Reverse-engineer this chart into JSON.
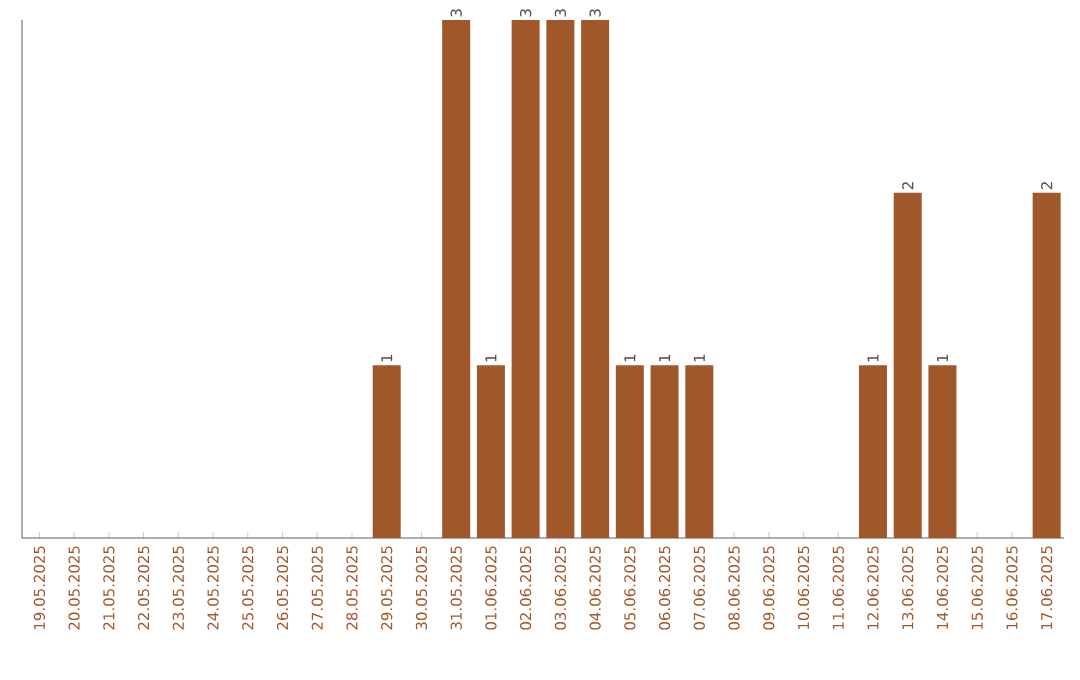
{
  "chart_data": {
    "type": "bar",
    "categories": [
      "19.05.2025",
      "20.05.2025",
      "21.05.2025",
      "22.05.2025",
      "23.05.2025",
      "24.05.2025",
      "25.05.2025",
      "26.05.2025",
      "27.05.2025",
      "28.05.2025",
      "29.05.2025",
      "30.05.2025",
      "31.05.2025",
      "01.06.2025",
      "02.06.2025",
      "03.06.2025",
      "04.06.2025",
      "05.06.2025",
      "06.06.2025",
      "07.06.2025",
      "08.06.2025",
      "09.06.2025",
      "10.06.2025",
      "11.06.2025",
      "12.06.2025",
      "13.06.2025",
      "14.06.2025",
      "15.06.2025",
      "16.06.2025",
      "17.06.2025"
    ],
    "values": [
      0,
      0,
      0,
      0,
      0,
      0,
      0,
      0,
      0,
      0,
      1,
      0,
      3,
      1,
      3,
      3,
      3,
      1,
      1,
      1,
      0,
      0,
      0,
      0,
      1,
      2,
      1,
      0,
      0,
      2
    ],
    "value_labels": [
      null,
      null,
      null,
      null,
      null,
      null,
      null,
      null,
      null,
      null,
      "1",
      null,
      "3",
      "1",
      "3",
      "3",
      "3",
      "1",
      "1",
      "1",
      null,
      null,
      null,
      null,
      "1",
      "2",
      "1",
      null,
      null,
      "2"
    ],
    "color": "#a0582a",
    "ylim": [
      0,
      3
    ],
    "tick_labels": "x",
    "grid": false
  }
}
